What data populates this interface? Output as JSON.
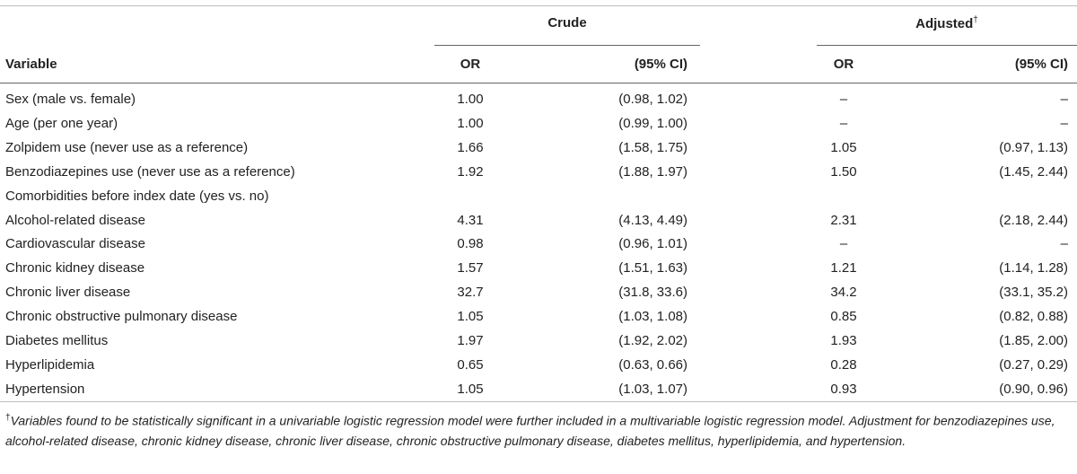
{
  "header": {
    "group_crude": "Crude",
    "group_adjusted": "Adjusted",
    "adjusted_mark": "†",
    "col_variable": "Variable",
    "col_or_1": "OR",
    "col_ci_1": "(95% CI)",
    "col_or_2": "OR",
    "col_ci_2": "(95% CI)"
  },
  "rows": [
    {
      "variable": "Sex (male vs. female)",
      "or_crude": "1.00",
      "ci_crude": "(0.98, 1.02)",
      "or_adj": "–",
      "ci_adj": "–"
    },
    {
      "variable": "Age (per one year)",
      "or_crude": "1.00",
      "ci_crude": "(0.99, 1.00)",
      "or_adj": "–",
      "ci_adj": "–"
    },
    {
      "variable": "Zolpidem use (never use as a reference)",
      "or_crude": "1.66",
      "ci_crude": "(1.58, 1.75)",
      "or_adj": "1.05",
      "ci_adj": "(0.97, 1.13)"
    },
    {
      "variable": "Benzodiazepines use (never use as a reference)",
      "or_crude": "1.92",
      "ci_crude": "(1.88, 1.97)",
      "or_adj": "1.50",
      "ci_adj": "(1.45, 2.44)"
    },
    {
      "variable": "Comorbidities before index date (yes vs. no)",
      "or_crude": "",
      "ci_crude": "",
      "or_adj": "",
      "ci_adj": ""
    },
    {
      "variable": "Alcohol-related disease",
      "or_crude": "4.31",
      "ci_crude": "(4.13, 4.49)",
      "or_adj": "2.31",
      "ci_adj": "(2.18, 2.44)"
    },
    {
      "variable": "Cardiovascular disease",
      "or_crude": "0.98",
      "ci_crude": "(0.96, 1.01)",
      "or_adj": "–",
      "ci_adj": "–"
    },
    {
      "variable": "Chronic kidney disease",
      "or_crude": "1.57",
      "ci_crude": "(1.51, 1.63)",
      "or_adj": "1.21",
      "ci_adj": "(1.14, 1.28)"
    },
    {
      "variable": "Chronic liver disease",
      "or_crude": "32.7",
      "ci_crude": "(31.8, 33.6)",
      "or_adj": "34.2",
      "ci_adj": "(33.1, 35.2)"
    },
    {
      "variable": "Chronic obstructive pulmonary disease",
      "or_crude": "1.05",
      "ci_crude": "(1.03, 1.08)",
      "or_adj": "0.85",
      "ci_adj": "(0.82, 0.88)"
    },
    {
      "variable": "Diabetes mellitus",
      "or_crude": "1.97",
      "ci_crude": "(1.92, 2.02)",
      "or_adj": "1.93",
      "ci_adj": "(1.85, 2.00)"
    },
    {
      "variable": "Hyperlipidemia",
      "or_crude": "0.65",
      "ci_crude": "(0.63, 0.66)",
      "or_adj": "0.28",
      "ci_adj": "(0.27, 0.29)"
    },
    {
      "variable": "Hypertension",
      "or_crude": "1.05",
      "ci_crude": "(1.03, 1.07)",
      "or_adj": "0.93",
      "ci_adj": "(0.90, 0.96)"
    }
  ],
  "footnote": {
    "mark": "†",
    "text": "Variables found to be statistically significant in a univariable logistic regression model were further included in a multivariable logistic regression model. Adjustment for benzodiazepines use, alcohol-related disease, chronic kidney disease, chronic liver disease, chronic obstructive pulmonary disease, diabetes mellitus, hyperlipidemia, and hypertension."
  }
}
